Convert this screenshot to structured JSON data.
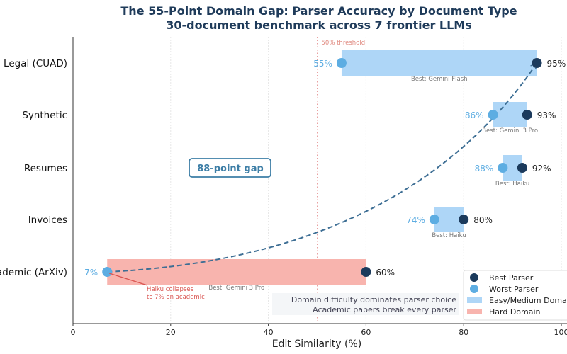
{
  "chart_data": {
    "type": "range-dot",
    "title": "The 55-Point Domain Gap: Parser Accuracy by Document Type",
    "subtitle": "30-document benchmark across 7 frontier LLMs",
    "xlabel": "Edit Similarity (%)",
    "xlim": [
      0,
      100
    ],
    "xticks": [
      0,
      20,
      40,
      60,
      80,
      100
    ],
    "grid": "vertical dotted",
    "categories": [
      "Legal (CUAD)",
      "Synthetic",
      "Resumes",
      "Invoices",
      "Academic (ArXiv)"
    ],
    "best": [
      95,
      93,
      92,
      80,
      60
    ],
    "worst": [
      55,
      86,
      88,
      74,
      7
    ],
    "best_labels": [
      "Best: Gemini Flash",
      "Best: Gemini 3 Pro",
      "Best: Haiku",
      "Best: Haiku",
      "Best: Gemini 3 Pro"
    ],
    "domain": [
      "easy",
      "easy",
      "easy",
      "easy",
      "hard"
    ],
    "threshold": {
      "value": 50,
      "label": "50% threshold"
    },
    "gap_label": "88-point gap",
    "annotation": "Haiku collapses\nto 7% on academic",
    "footnote": [
      "Domain difficulty dominates parser choice",
      "Academic papers break every parser"
    ],
    "legend": {
      "position": "bottom-right",
      "entries": [
        "Best Parser",
        "Worst Parser",
        "Easy/Medium Domain",
        "Hard Domain"
      ]
    },
    "colors": {
      "best": "#1b3a5c",
      "worst": "#5dade2",
      "easy": "#aed6f7",
      "hard": "#f8b4ae",
      "curve": "#3d6e94",
      "title": "#1f3b5a",
      "threshold": "#e8a0a0",
      "annotation": "#d9534f"
    }
  }
}
